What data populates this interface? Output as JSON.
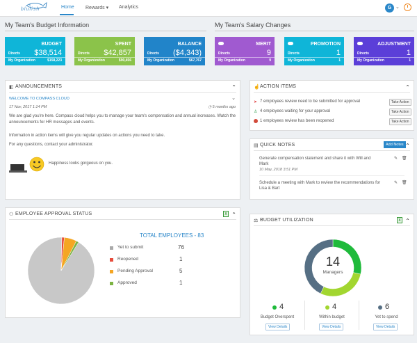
{
  "header": {
    "logo_text": "blufish",
    "nav": [
      "Home",
      "Rewards ▾",
      "Analytics"
    ],
    "avatar_initial": "G"
  },
  "budget_section": {
    "title": "My Team's Budget Information",
    "cards": [
      {
        "title": "BUDGET",
        "directs_label": "Directs",
        "directs_value": "$38,514",
        "org_label": "My Organization",
        "org_value": "$158,223",
        "color": "#0fb5d8"
      },
      {
        "title": "SPENT",
        "directs_label": "Directs",
        "directs_value": "$42,857",
        "org_label": "My Organization",
        "org_value": "$90,456",
        "color": "#8bc34a"
      },
      {
        "title": "BALANCE",
        "directs_label": "Directs",
        "directs_value": "($4,343)",
        "org_label": "My Organization",
        "org_value": "$67,767",
        "color": "#2184c9"
      }
    ]
  },
  "salary_section": {
    "title": "My Team's Salary Changes",
    "cards": [
      {
        "title": "MERIT",
        "directs_label": "Directs",
        "directs_value": "9",
        "org_label": "My Organization",
        "org_value": "9",
        "color": "#a05ad0"
      },
      {
        "title": "PROMOTION",
        "directs_label": "Directs",
        "directs_value": "1",
        "org_label": "My Organization",
        "org_value": "1",
        "color": "#0fb5d8"
      },
      {
        "title": "ADJUSTMENT",
        "directs_label": "Directs",
        "directs_value": "1",
        "org_label": "My Organization",
        "org_value": "1",
        "color": "#5b3fd8"
      }
    ]
  },
  "announcements": {
    "title": "ANNOUNCEMENTS",
    "link": "WELCOME TO COMPASS CLOUD",
    "date": "17 Nov, 2017 1:14 PM",
    "ago": "5 months ago",
    "p1": "We are glad you're here. Compass cloud helps you to manage your team's compensation and annual increases. Watch the announcements for HR messages and events.",
    "p2": "Information in action items will give you regular updates on actions you need to take.",
    "p3": "For any questions, contact your administrator.",
    "happiness": "Happiness looks gorgeous on you."
  },
  "action_items": {
    "title": "ACTION ITEMS",
    "button": "Take Action",
    "items": [
      {
        "text": "7 employees review need to be submitted for approval",
        "color": "#e05050"
      },
      {
        "text": "4 employees waiting for your approval",
        "color": "#2a9a4a"
      },
      {
        "text": "1 employees review has been reopened",
        "color": "#d24a3a"
      }
    ]
  },
  "quick_notes": {
    "title": "QUICK NOTES",
    "add_button": "Add Notes",
    "notes": [
      {
        "text": "Generate compensation statement and share it with Will and Mark",
        "date": "10 May, 2018 3:51 PM"
      },
      {
        "text": "Schedule a meeting with Mark to review the recommendations for Lisa & Bart",
        "date": ""
      }
    ]
  },
  "approval": {
    "title": "EMPLOYEE APPROVAL STATUS",
    "total_label": "TOTAL EMPLOYEES - 83",
    "chart_data": {
      "type": "pie",
      "categories": [
        "Yet to submit",
        "Reopened",
        "Pending Approval",
        "Approved"
      ],
      "values": [
        76,
        1,
        5,
        1
      ],
      "colors": [
        "#c8c8c8",
        "#e74c3c",
        "#f5a623",
        "#7cb342"
      ]
    }
  },
  "budget_util": {
    "title": "BUDGET UTILIZATION",
    "center_value": "14",
    "center_label": "Managers",
    "chart_data": {
      "type": "pie",
      "categories": [
        "Budget Overspent",
        "Within budget",
        "Yet to spend"
      ],
      "values": [
        4,
        4,
        6
      ],
      "colors": [
        "#1fba3b",
        "#a2d630",
        "#566f84"
      ]
    },
    "view_details": "View Details"
  }
}
